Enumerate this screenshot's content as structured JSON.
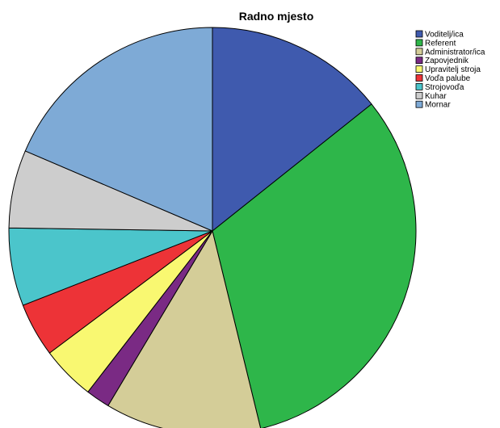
{
  "chart_data": {
    "type": "pie",
    "title": "Radno mjesto",
    "legend": "top-right",
    "slices": [
      {
        "label": "Voditelj/ica",
        "value": 15.0,
        "color": "#3f5aae"
      },
      {
        "label": "Referent",
        "value": 33.5,
        "color": "#2eb64a"
      },
      {
        "label": "Administrator/ica",
        "value": 13.0,
        "color": "#d4cd98"
      },
      {
        "label": "Zapovjednik",
        "value": 2.0,
        "color": "#7a2a84"
      },
      {
        "label": "Upravitelj stroja",
        "value": 4.5,
        "color": "#f9f871"
      },
      {
        "label": "Voďa palube",
        "value": 4.5,
        "color": "#ed3337"
      },
      {
        "label": "Strojovoďa",
        "value": 6.5,
        "color": "#4bc5cb"
      },
      {
        "label": "Kuhar",
        "value": 6.5,
        "color": "#cdcdcd"
      },
      {
        "label": "Mornar",
        "value": 19.5,
        "color": "#7eaad6"
      }
    ]
  }
}
